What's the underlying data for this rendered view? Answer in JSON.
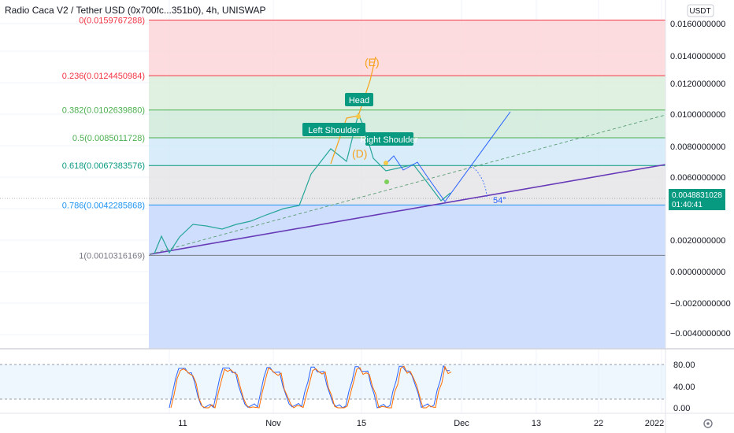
{
  "header": {
    "title": "Radio Caca V2 / Tether USD (0x700fc...351b0), 4h, UNISWAP"
  },
  "currency_badge": "USDT",
  "price_label": {
    "price": "0.0048831028",
    "countdown": "01:40:41",
    "color": "#089981"
  },
  "fib_levels": [
    {
      "label": "0(0.0159767288)",
      "value": 0.0159767288,
      "color": "#f23645"
    },
    {
      "label": "0.236(0.0124450984)",
      "value": 0.0124450984,
      "color": "#f23645"
    },
    {
      "label": "0.382(0.0102639880)",
      "value": 0.010263988,
      "color": "#4caf50"
    },
    {
      "label": "0.5(0.0085011728)",
      "value": 0.0085011728,
      "color": "#4caf50"
    },
    {
      "label": "0.618(0.0067383576)",
      "value": 0.0067383576,
      "color": "#089981"
    },
    {
      "label": "0.786(0.0042285868)",
      "value": 0.0042285868,
      "color": "#2196f3"
    },
    {
      "label": "1(0.0010316169)",
      "value": 0.0010316169,
      "color": "#787b86"
    }
  ],
  "fib_zone_colors": [
    "#fcd6d8",
    "#dbefdc",
    "#cfeadb",
    "#d1e9f8",
    "#e5e5e7",
    "#c7d8fb"
  ],
  "annotations": {
    "head": "Head",
    "left_shoulder": "Left Shoulder",
    "right_shoulder": "Right Shoulder",
    "wave_e": "(E)",
    "wave_d": "(D)",
    "angle": "54°"
  },
  "main_y_ticks": [
    "0.0160000000",
    "0.0140000000",
    "0.0120000000",
    "0.0100000000",
    "0.0080000000",
    "0.0060000000",
    "0.0020000000",
    "0.0000000000",
    "−0.0020000000",
    "−0.0040000000"
  ],
  "osc_y_ticks": [
    "80.00",
    "40.00",
    "0.00"
  ],
  "x_ticks": [
    "11",
    "Nov",
    "15",
    "Dec",
    "13",
    "22",
    "2022"
  ],
  "chart_data": {
    "type": "line",
    "title": "Radio Caca V2 / Tether USD (0x700fc...351b0), 4h, UNISWAP",
    "xlabel": "",
    "ylabel": "",
    "ylim": [
      -0.0048,
      0.0166
    ],
    "grid": true,
    "price_series": {
      "x": [
        "Oct 11",
        "Oct 14",
        "Oct 18",
        "Oct 21",
        "Oct 25",
        "Oct 28",
        "Nov 1",
        "Nov 4",
        "Nov 7",
        "Nov 9",
        "Nov 10",
        "Nov 11",
        "Nov 13",
        "Nov 15",
        "Nov 16",
        "Nov 17",
        "Nov 19",
        "Nov 21",
        "Nov 23",
        "Nov 25",
        "Nov 27",
        "Nov 29"
      ],
      "y": [
        0.0012,
        0.0022,
        0.003,
        0.0029,
        0.0027,
        0.003,
        0.0032,
        0.0036,
        0.004,
        0.0042,
        0.0062,
        0.0078,
        0.007,
        0.01,
        0.0092,
        0.0072,
        0.0064,
        0.0066,
        0.0068,
        0.0055,
        0.0045,
        0.005
      ]
    },
    "stoch_rsi": {
      "ylim": [
        0,
        100
      ],
      "upper_band": 80,
      "lower_band": 20
    }
  }
}
